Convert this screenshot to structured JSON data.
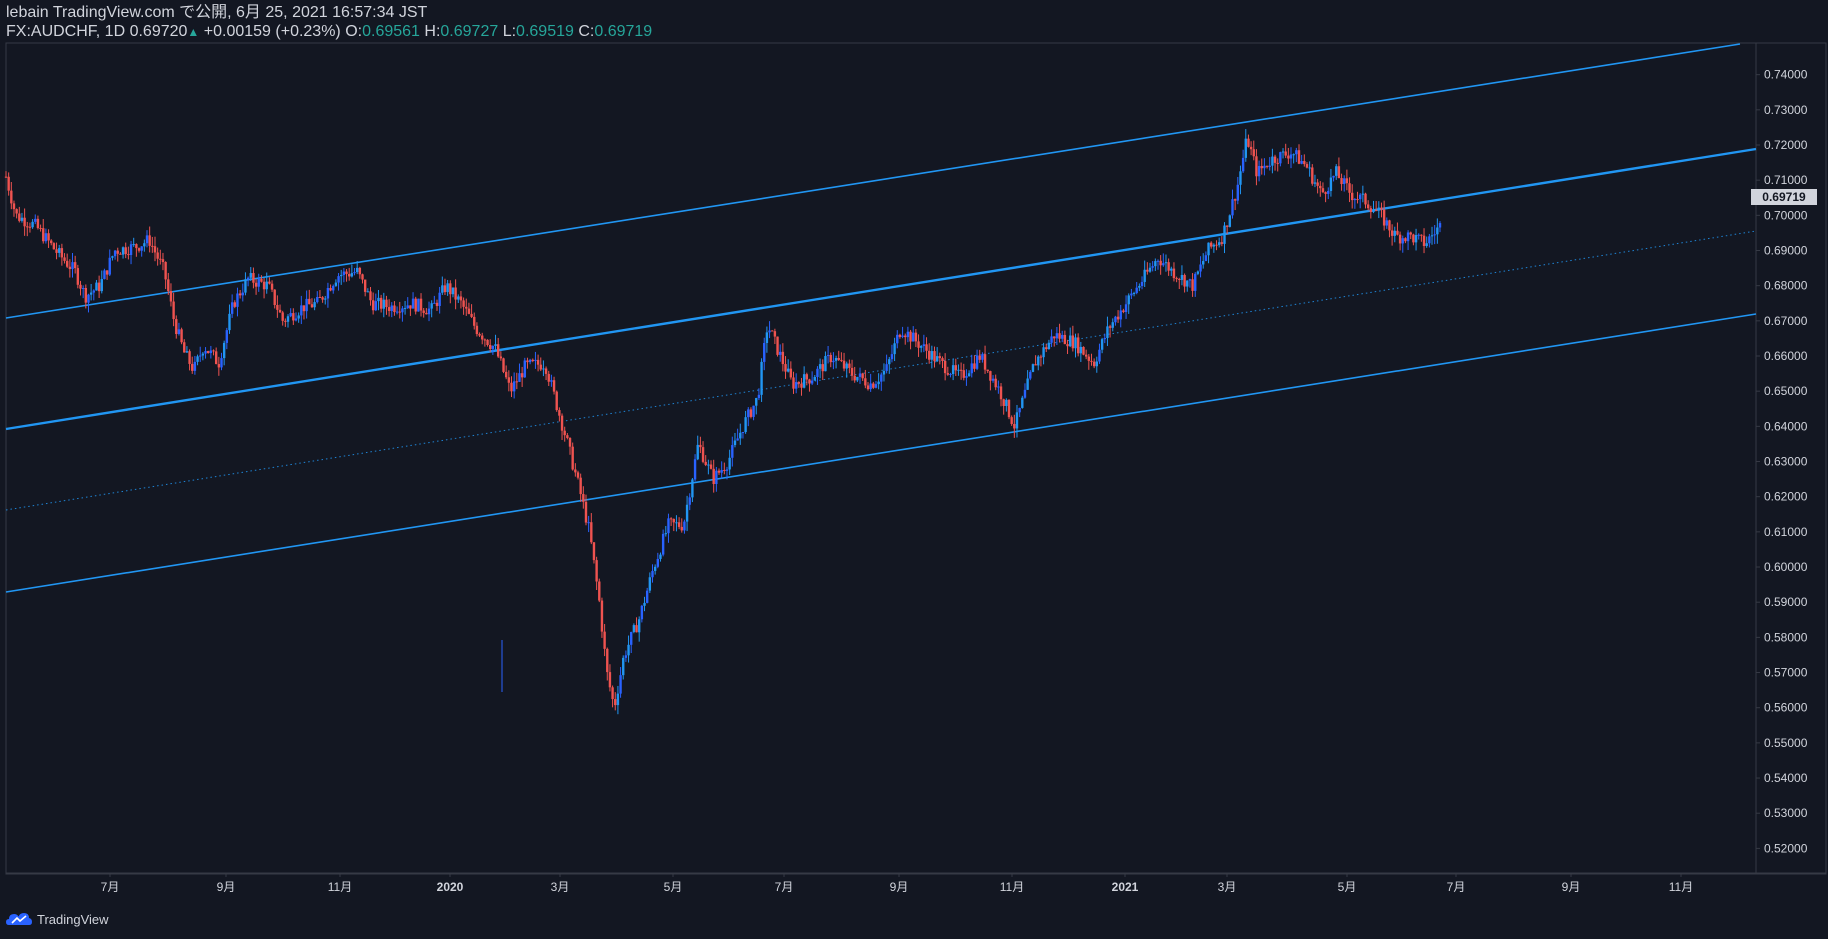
{
  "header": {
    "line1": "lebain TradingView.com で公開, 6月 25, 2021 16:57:34 JST",
    "symbol": "FX:AUDCHF, 1D",
    "last": "0.69720",
    "change": "+0.00159 (+0.23%)",
    "o_label": "O:",
    "o_value": "0.69561",
    "h_label": "H:",
    "h_value": "0.69727",
    "l_label": "L:",
    "l_value": "0.69519",
    "c_label": "C:",
    "c_value": "0.69719",
    "up_arrow": "▲"
  },
  "footer": {
    "brand": "TradingView",
    "logo_icon": "tradingview-cloud-icon"
  },
  "colors": {
    "background": "#131722",
    "up_candle": "#2962ff",
    "up_candle_alt": "#2196f3",
    "down_candle": "#ef5350",
    "channel_line": "#2196f3",
    "axis_text": "#d1d4dc",
    "axis_border": "#363a45",
    "value_green": "#26a69a",
    "price_tag_bg": "#d1d4dc"
  },
  "chart_data": {
    "type": "candlestick",
    "symbol": "FX:AUDCHF",
    "timeframe": "1D",
    "last_price": "0.69719",
    "y_range": [
      0.513,
      0.749
    ],
    "y_ticks": [
      "0.74000",
      "0.73000",
      "0.72000",
      "0.71000",
      "0.70000",
      "0.69000",
      "0.68000",
      "0.67000",
      "0.66000",
      "0.65000",
      "0.64000",
      "0.63000",
      "0.62000",
      "0.61000",
      "0.60000",
      "0.59000",
      "0.58000",
      "0.57000",
      "0.56000",
      "0.55000",
      "0.54000",
      "0.53000",
      "0.52000"
    ],
    "x_ticks": [
      "7月",
      "9月",
      "11月",
      "2020",
      "3月",
      "5月",
      "7月",
      "9月",
      "11月",
      "2021",
      "3月",
      "5月",
      "7月",
      "9月",
      "11月"
    ],
    "x_tick_bold": [
      false,
      false,
      false,
      true,
      false,
      false,
      false,
      false,
      false,
      true,
      false,
      false,
      false,
      false,
      false
    ],
    "x_range_months": [
      0,
      29
    ],
    "x_tick_months": [
      2,
      4,
      6,
      8,
      10,
      12,
      14,
      16,
      18,
      20,
      22,
      24,
      26,
      28,
      30
    ],
    "series_keypoints": [
      [
        0.0,
        0.711
      ],
      [
        0.2,
        0.7
      ],
      [
        0.6,
        0.697
      ],
      [
        1.0,
        0.69
      ],
      [
        1.4,
        0.684
      ],
      [
        1.6,
        0.677
      ],
      [
        1.9,
        0.68
      ],
      [
        2.2,
        0.69
      ],
      [
        2.6,
        0.691
      ],
      [
        2.9,
        0.693
      ],
      [
        3.2,
        0.684
      ],
      [
        3.4,
        0.67
      ],
      [
        3.6,
        0.661
      ],
      [
        3.8,
        0.656
      ],
      [
        4.0,
        0.663
      ],
      [
        4.3,
        0.658
      ],
      [
        4.6,
        0.675
      ],
      [
        4.9,
        0.682
      ],
      [
        5.3,
        0.68
      ],
      [
        5.6,
        0.67
      ],
      [
        6.0,
        0.674
      ],
      [
        6.3,
        0.675
      ],
      [
        6.7,
        0.683
      ],
      [
        7.1,
        0.684
      ],
      [
        7.4,
        0.675
      ],
      [
        7.8,
        0.674
      ],
      [
        8.2,
        0.675
      ],
      [
        8.6,
        0.673
      ],
      [
        8.9,
        0.68
      ],
      [
        9.2,
        0.675
      ],
      [
        9.5,
        0.668
      ],
      [
        9.9,
        0.662
      ],
      [
        10.2,
        0.65
      ],
      [
        10.5,
        0.657
      ],
      [
        10.9,
        0.658
      ],
      [
        11.1,
        0.648
      ],
      [
        11.3,
        0.638
      ],
      [
        11.6,
        0.622
      ],
      [
        11.8,
        0.61
      ],
      [
        12.0,
        0.59
      ],
      [
        12.15,
        0.57
      ],
      [
        12.3,
        0.56
      ],
      [
        12.5,
        0.575
      ],
      [
        12.8,
        0.585
      ],
      [
        13.1,
        0.6
      ],
      [
        13.4,
        0.612
      ],
      [
        13.7,
        0.612
      ],
      [
        14.0,
        0.635
      ],
      [
        14.3,
        0.625
      ],
      [
        14.6,
        0.63
      ],
      [
        14.9,
        0.64
      ],
      [
        15.2,
        0.648
      ],
      [
        15.4,
        0.669
      ],
      [
        15.6,
        0.662
      ],
      [
        15.9,
        0.652
      ],
      [
        16.3,
        0.654
      ],
      [
        16.7,
        0.66
      ],
      [
        17.1,
        0.655
      ],
      [
        17.5,
        0.652
      ],
      [
        17.8,
        0.656
      ],
      [
        18.1,
        0.668
      ],
      [
        18.5,
        0.663
      ],
      [
        18.9,
        0.658
      ],
      [
        19.3,
        0.654
      ],
      [
        19.7,
        0.66
      ],
      [
        20.1,
        0.65
      ],
      [
        20.4,
        0.64
      ],
      [
        20.8,
        0.658
      ],
      [
        21.2,
        0.666
      ],
      [
        21.6,
        0.664
      ],
      [
        22.0,
        0.658
      ],
      [
        22.3,
        0.668
      ],
      [
        22.7,
        0.676
      ],
      [
        23.0,
        0.682
      ],
      [
        23.3,
        0.688
      ],
      [
        23.6,
        0.684
      ],
      [
        24.0,
        0.68
      ],
      [
        24.3,
        0.69
      ],
      [
        24.6,
        0.694
      ],
      [
        24.9,
        0.708
      ],
      [
        25.1,
        0.722
      ],
      [
        25.3,
        0.712
      ],
      [
        25.6,
        0.716
      ],
      [
        26.0,
        0.718
      ],
      [
        26.3,
        0.714
      ],
      [
        26.6,
        0.706
      ],
      [
        26.9,
        0.712
      ],
      [
        27.2,
        0.706
      ],
      [
        27.5,
        0.704
      ],
      [
        27.8,
        0.7
      ],
      [
        28.1,
        0.694
      ],
      [
        28.4,
        0.694
      ],
      [
        28.7,
        0.692
      ],
      [
        29.0,
        0.697
      ]
    ],
    "channel_lines": [
      {
        "name": "upper",
        "from": [
          0,
          0.674
        ],
        "to": [
          29,
          0.749
        ]
      },
      {
        "name": "middle",
        "from": [
          0,
          0.642
        ],
        "to": [
          29,
          0.719
        ]
      },
      {
        "name": "midline-dotted",
        "from": [
          0,
          0.619
        ],
        "to": [
          29,
          0.697
        ]
      },
      {
        "name": "lower",
        "from": [
          0,
          0.596
        ],
        "to": [
          29,
          0.673
        ]
      }
    ]
  }
}
